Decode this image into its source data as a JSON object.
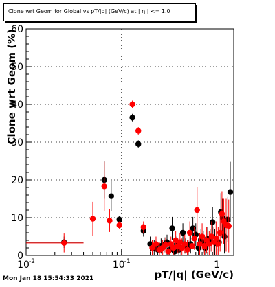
{
  "chart_data": {
    "type": "scatter",
    "title": "Clone wrt Geom for Global vs pT/|q| (GeV/c) at | η | <= 1.0",
    "xlabel": "pT/|q| (GeV/c)",
    "ylabel": "Clone wrt Geom (%)",
    "xscale": "log",
    "xlim": [
      0.01,
      1.5
    ],
    "ylim": [
      0,
      60
    ],
    "grid": true,
    "x_ticks": [
      {
        "value": 0.01,
        "label": "10",
        "exp": "-2"
      },
      {
        "value": 0.1,
        "label": "10",
        "exp": "-1"
      },
      {
        "value": 1,
        "label": "1",
        "exp": ""
      }
    ],
    "y_ticks": [
      {
        "value": 0,
        "label": "0"
      },
      {
        "value": 10,
        "label": "10"
      },
      {
        "value": 20,
        "label": "20"
      },
      {
        "value": 30,
        "label": "30"
      },
      {
        "value": 40,
        "label": "40"
      },
      {
        "value": 50,
        "label": "50"
      },
      {
        "value": 60,
        "label": "60"
      }
    ],
    "series": [
      {
        "color": "#000000",
        "points": [
          {
            "x": 0.025,
            "y": 3.5,
            "xlo": 0.01,
            "xhi": 0.04,
            "yerr": 1.5
          },
          {
            "x": 0.066,
            "y": 20.0,
            "xlo": 0.064,
            "xhi": 0.068,
            "yerr": 5.0
          },
          {
            "x": 0.078,
            "y": 15.7,
            "xlo": 0.076,
            "xhi": 0.08,
            "yerr": 4.0
          },
          {
            "x": 0.095,
            "y": 9.5,
            "xlo": 0.09,
            "xhi": 0.1,
            "yerr": 1.0
          },
          {
            "x": 0.13,
            "y": 36.5,
            "xlo": 0.125,
            "xhi": 0.135,
            "yerr": 1.0
          },
          {
            "x": 0.15,
            "y": 29.5,
            "xlo": 0.145,
            "xhi": 0.155,
            "yerr": 1.0
          },
          {
            "x": 0.17,
            "y": 6.5,
            "xlo": 0.165,
            "xhi": 0.175,
            "yerr": 1.5
          },
          {
            "x": 0.2,
            "y": 3.0,
            "xlo": 0.195,
            "xhi": 0.205,
            "yerr": 2.0
          },
          {
            "x": 0.22,
            "y": 2.0,
            "xlo": 0.215,
            "xhi": 0.225,
            "yerr": 2.0
          },
          {
            "x": 0.24,
            "y": 1.5,
            "xlo": 0.235,
            "xhi": 0.245,
            "yerr": 2.0
          },
          {
            "x": 0.26,
            "y": 2.5,
            "xlo": 0.255,
            "xhi": 0.265,
            "yerr": 2.0
          },
          {
            "x": 0.28,
            "y": 2.8,
            "xlo": 0.275,
            "xhi": 0.285,
            "yerr": 2.0
          },
          {
            "x": 0.3,
            "y": 3.5,
            "xlo": 0.295,
            "xhi": 0.305,
            "yerr": 2.0
          },
          {
            "x": 0.32,
            "y": 1.5,
            "xlo": 0.315,
            "xhi": 0.325,
            "yerr": 2.0
          },
          {
            "x": 0.34,
            "y": 7.2,
            "xlo": 0.335,
            "xhi": 0.345,
            "yerr": 3.0
          },
          {
            "x": 0.36,
            "y": 1.0,
            "xlo": 0.355,
            "xhi": 0.365,
            "yerr": 2.0
          },
          {
            "x": 0.38,
            "y": 3.0,
            "xlo": 0.375,
            "xhi": 0.385,
            "yerr": 2.0
          },
          {
            "x": 0.4,
            "y": 1.5,
            "xlo": 0.395,
            "xhi": 0.405,
            "yerr": 2.0
          },
          {
            "x": 0.42,
            "y": 2.0,
            "xlo": 0.415,
            "xhi": 0.425,
            "yerr": 2.0
          },
          {
            "x": 0.44,
            "y": 6.0,
            "xlo": 0.435,
            "xhi": 0.445,
            "yerr": 2.5
          },
          {
            "x": 0.47,
            "y": 2.5,
            "xlo": 0.46,
            "xhi": 0.48,
            "yerr": 2.0
          },
          {
            "x": 0.5,
            "y": 2.0,
            "xlo": 0.49,
            "xhi": 0.51,
            "yerr": 2.0
          },
          {
            "x": 0.53,
            "y": 3.0,
            "xlo": 0.52,
            "xhi": 0.54,
            "yerr": 2.5
          },
          {
            "x": 0.56,
            "y": 7.2,
            "xlo": 0.55,
            "xhi": 0.57,
            "yerr": 3.0
          },
          {
            "x": 0.6,
            "y": 5.5,
            "xlo": 0.59,
            "xhi": 0.61,
            "yerr": 3.0
          },
          {
            "x": 0.64,
            "y": 2.0,
            "xlo": 0.63,
            "xhi": 0.65,
            "yerr": 2.5
          },
          {
            "x": 0.68,
            "y": 4.0,
            "xlo": 0.67,
            "xhi": 0.69,
            "yerr": 3.0
          },
          {
            "x": 0.72,
            "y": 3.5,
            "xlo": 0.71,
            "xhi": 0.73,
            "yerr": 3.0
          },
          {
            "x": 0.76,
            "y": 2.0,
            "xlo": 0.75,
            "xhi": 0.77,
            "yerr": 2.5
          },
          {
            "x": 0.8,
            "y": 4.5,
            "xlo": 0.79,
            "xhi": 0.81,
            "yerr": 3.0
          },
          {
            "x": 0.85,
            "y": 4.0,
            "xlo": 0.84,
            "xhi": 0.86,
            "yerr": 3.0
          },
          {
            "x": 0.9,
            "y": 8.8,
            "xlo": 0.89,
            "xhi": 0.91,
            "yerr": 4.0
          },
          {
            "x": 0.95,
            "y": 3.5,
            "xlo": 0.94,
            "xhi": 0.96,
            "yerr": 3.5
          },
          {
            "x": 1.0,
            "y": 3.0,
            "xlo": 0.99,
            "xhi": 1.01,
            "yerr": 3.5
          },
          {
            "x": 1.05,
            "y": 3.5,
            "xlo": 1.04,
            "xhi": 1.06,
            "yerr": 4.0
          },
          {
            "x": 1.1,
            "y": 11.5,
            "xlo": 1.09,
            "xhi": 1.11,
            "yerr": 5.0
          },
          {
            "x": 1.15,
            "y": 10.0,
            "xlo": 1.14,
            "xhi": 1.16,
            "yerr": 5.0
          },
          {
            "x": 1.2,
            "y": 5.0,
            "xlo": 1.19,
            "xhi": 1.21,
            "yerr": 4.5
          },
          {
            "x": 1.3,
            "y": 9.5,
            "xlo": 1.29,
            "xhi": 1.31,
            "yerr": 6.0
          },
          {
            "x": 1.38,
            "y": 16.8,
            "xlo": 1.37,
            "xhi": 1.39,
            "yerr": 8.0
          }
        ]
      },
      {
        "color": "#ff0000",
        "points": [
          {
            "x": 0.025,
            "y": 3.3,
            "xlo": 0.01,
            "xhi": 0.04,
            "yerr": 2.5
          },
          {
            "x": 0.05,
            "y": 9.7,
            "xlo": 0.048,
            "xhi": 0.052,
            "yerr": 4.5
          },
          {
            "x": 0.066,
            "y": 18.3,
            "xlo": 0.064,
            "xhi": 0.068,
            "yerr": 6.5
          },
          {
            "x": 0.075,
            "y": 9.2,
            "xlo": 0.073,
            "xhi": 0.077,
            "yerr": 3.0
          },
          {
            "x": 0.095,
            "y": 8.0,
            "xlo": 0.09,
            "xhi": 0.1,
            "yerr": 1.0
          },
          {
            "x": 0.13,
            "y": 40.0,
            "xlo": 0.125,
            "xhi": 0.135,
            "yerr": 1.0
          },
          {
            "x": 0.15,
            "y": 33.0,
            "xlo": 0.145,
            "xhi": 0.155,
            "yerr": 1.0
          },
          {
            "x": 0.17,
            "y": 7.5,
            "xlo": 0.165,
            "xhi": 0.175,
            "yerr": 1.5
          },
          {
            "x": 0.21,
            "y": 2.0,
            "xlo": 0.205,
            "xhi": 0.215,
            "yerr": 2.0
          },
          {
            "x": 0.23,
            "y": 3.0,
            "xlo": 0.225,
            "xhi": 0.235,
            "yerr": 2.0
          },
          {
            "x": 0.25,
            "y": 1.5,
            "xlo": 0.245,
            "xhi": 0.255,
            "yerr": 2.0
          },
          {
            "x": 0.27,
            "y": 2.0,
            "xlo": 0.265,
            "xhi": 0.275,
            "yerr": 2.0
          },
          {
            "x": 0.29,
            "y": 2.8,
            "xlo": 0.285,
            "xhi": 0.295,
            "yerr": 2.0
          },
          {
            "x": 0.31,
            "y": 1.0,
            "xlo": 0.305,
            "xhi": 0.315,
            "yerr": 2.0
          },
          {
            "x": 0.33,
            "y": 3.0,
            "xlo": 0.325,
            "xhi": 0.335,
            "yerr": 2.0
          },
          {
            "x": 0.35,
            "y": 2.0,
            "xlo": 0.345,
            "xhi": 0.355,
            "yerr": 2.0
          },
          {
            "x": 0.37,
            "y": 4.0,
            "xlo": 0.365,
            "xhi": 0.375,
            "yerr": 2.5
          },
          {
            "x": 0.39,
            "y": 2.5,
            "xlo": 0.385,
            "xhi": 0.395,
            "yerr": 2.0
          },
          {
            "x": 0.41,
            "y": 3.5,
            "xlo": 0.405,
            "xhi": 0.415,
            "yerr": 2.5
          },
          {
            "x": 0.43,
            "y": 2.0,
            "xlo": 0.425,
            "xhi": 0.435,
            "yerr": 2.5
          },
          {
            "x": 0.46,
            "y": 3.0,
            "xlo": 0.45,
            "xhi": 0.47,
            "yerr": 2.5
          },
          {
            "x": 0.49,
            "y": 1.5,
            "xlo": 0.48,
            "xhi": 0.5,
            "yerr": 2.5
          },
          {
            "x": 0.52,
            "y": 6.0,
            "xlo": 0.51,
            "xhi": 0.53,
            "yerr": 3.0
          },
          {
            "x": 0.55,
            "y": 2.5,
            "xlo": 0.54,
            "xhi": 0.56,
            "yerr": 3.0
          },
          {
            "x": 0.58,
            "y": 4.5,
            "xlo": 0.57,
            "xhi": 0.59,
            "yerr": 3.0
          },
          {
            "x": 0.62,
            "y": 12.0,
            "xlo": 0.61,
            "xhi": 0.63,
            "yerr": 6.0
          },
          {
            "x": 0.66,
            "y": 3.0,
            "xlo": 0.65,
            "xhi": 0.67,
            "yerr": 3.0
          },
          {
            "x": 0.7,
            "y": 5.0,
            "xlo": 0.69,
            "xhi": 0.71,
            "yerr": 3.5
          },
          {
            "x": 0.74,
            "y": 2.5,
            "xlo": 0.73,
            "xhi": 0.75,
            "yerr": 3.0
          },
          {
            "x": 0.78,
            "y": 4.0,
            "xlo": 0.77,
            "xhi": 0.79,
            "yerr": 3.5
          },
          {
            "x": 0.83,
            "y": 3.0,
            "xlo": 0.82,
            "xhi": 0.84,
            "yerr": 3.5
          },
          {
            "x": 0.88,
            "y": 5.0,
            "xlo": 0.87,
            "xhi": 0.89,
            "yerr": 4.0
          },
          {
            "x": 0.93,
            "y": 3.5,
            "xlo": 0.92,
            "xhi": 0.94,
            "yerr": 4.0
          },
          {
            "x": 0.98,
            "y": 4.5,
            "xlo": 0.97,
            "xhi": 0.99,
            "yerr": 4.5
          },
          {
            "x": 1.03,
            "y": 3.0,
            "xlo": 1.02,
            "xhi": 1.04,
            "yerr": 4.5
          },
          {
            "x": 1.08,
            "y": 6.0,
            "xlo": 1.07,
            "xhi": 1.09,
            "yerr": 5.0
          },
          {
            "x": 1.13,
            "y": 11.0,
            "xlo": 1.12,
            "xhi": 1.14,
            "yerr": 6.0
          },
          {
            "x": 1.18,
            "y": 9.0,
            "xlo": 1.17,
            "xhi": 1.19,
            "yerr": 6.0
          },
          {
            "x": 1.25,
            "y": 8.0,
            "xlo": 1.24,
            "xhi": 1.26,
            "yerr": 7.0
          },
          {
            "x": 1.33,
            "y": 7.8,
            "xlo": 1.32,
            "xhi": 1.34,
            "yerr": 7.0
          }
        ]
      }
    ]
  },
  "footer": {
    "timestamp": "Mon Jan 18 15:54:33 2021"
  }
}
